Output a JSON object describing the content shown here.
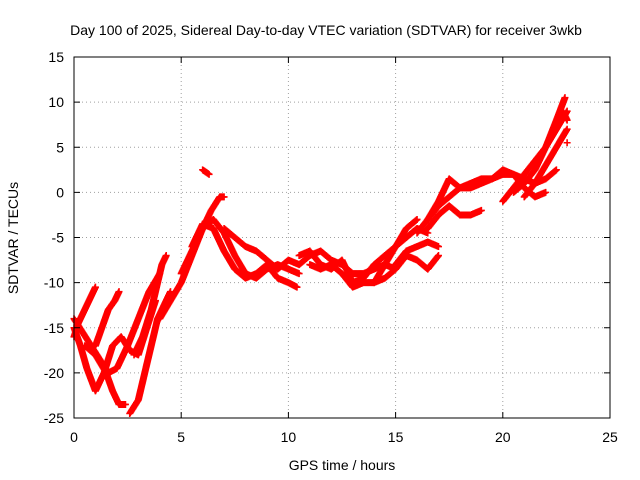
{
  "chart_data": {
    "type": "scatter",
    "title": "Day 100 of 2025, Sidereal Day-to-day VTEC variation (SDTVAR) for receiver 3wkb",
    "xlabel": "GPS time / hours",
    "ylabel": "SDTVAR / TECUs",
    "xlim": [
      0,
      25
    ],
    "ylim": [
      -25,
      15
    ],
    "xticks": [
      "0",
      "5",
      "10",
      "15",
      "20",
      "25"
    ],
    "yticks": [
      "15",
      "10",
      "5",
      "0",
      "-5",
      "-10",
      "-15",
      "-20",
      "-25"
    ],
    "grid": true,
    "marker": "plus",
    "color": "#ff0000",
    "tracks": [
      [
        [
          0.0,
          -14
        ],
        [
          0.4,
          -15.5
        ],
        [
          0.8,
          -17
        ],
        [
          1.2,
          -18.5
        ],
        [
          1.6,
          -20
        ],
        [
          2.0,
          -19.5
        ],
        [
          2.5,
          -17
        ],
        [
          3.0,
          -14
        ],
        [
          3.5,
          -11
        ],
        [
          4.0,
          -9
        ]
      ],
      [
        [
          0.0,
          -15
        ],
        [
          0.3,
          -17
        ],
        [
          0.6,
          -19.5
        ],
        [
          1.0,
          -22
        ],
        [
          1.4,
          -20
        ],
        [
          1.8,
          -17
        ],
        [
          2.2,
          -16
        ],
        [
          2.6,
          -17.5
        ],
        [
          3.0,
          -18
        ],
        [
          3.4,
          -15
        ],
        [
          3.8,
          -12
        ]
      ],
      [
        [
          0.0,
          -16
        ],
        [
          0.2,
          -14.5
        ],
        [
          0.4,
          -13.5
        ],
        [
          0.6,
          -12.5
        ],
        [
          0.8,
          -11.5
        ],
        [
          1.0,
          -10.5
        ]
      ],
      [
        [
          1.0,
          -17
        ],
        [
          1.3,
          -15
        ],
        [
          1.6,
          -13
        ],
        [
          1.9,
          -12
        ],
        [
          2.1,
          -11
        ]
      ],
      [
        [
          0.5,
          -17
        ],
        [
          1.0,
          -18
        ],
        [
          1.5,
          -20
        ],
        [
          1.8,
          -22
        ],
        [
          2.1,
          -23.5
        ],
        [
          2.4,
          -23.5
        ]
      ],
      [
        [
          2.6,
          -24.5
        ],
        [
          3.0,
          -23
        ],
        [
          3.3,
          -20
        ],
        [
          3.6,
          -17
        ],
        [
          3.9,
          -14
        ],
        [
          4.2,
          -12.5
        ],
        [
          4.5,
          -11
        ]
      ],
      [
        [
          2.8,
          -18
        ],
        [
          3.2,
          -16
        ],
        [
          3.6,
          -13
        ],
        [
          3.9,
          -10
        ],
        [
          4.1,
          -8
        ],
        [
          4.3,
          -7
        ]
      ],
      [
        [
          4.0,
          -14
        ],
        [
          4.5,
          -12
        ],
        [
          5.0,
          -10
        ],
        [
          5.5,
          -7
        ],
        [
          6.0,
          -4
        ],
        [
          6.4,
          -2
        ],
        [
          6.8,
          -0.5
        ],
        [
          7.0,
          -0.5
        ]
      ],
      [
        [
          5.0,
          -9
        ],
        [
          5.5,
          -6.5
        ],
        [
          6.0,
          -4
        ],
        [
          6.5,
          -3
        ],
        [
          7.0,
          -4.5
        ],
        [
          7.5,
          -7
        ],
        [
          8.0,
          -9
        ],
        [
          8.5,
          -9.5
        ],
        [
          9.0,
          -8.5
        ],
        [
          9.5,
          -8
        ],
        [
          10.0,
          -8.5
        ],
        [
          10.5,
          -9
        ]
      ],
      [
        [
          5.5,
          -6
        ],
        [
          6.0,
          -3.5
        ],
        [
          6.5,
          -4
        ],
        [
          7.0,
          -6.5
        ],
        [
          7.5,
          -8.5
        ],
        [
          8.0,
          -9.5
        ],
        [
          8.5,
          -9
        ],
        [
          9.0,
          -8
        ],
        [
          9.5,
          -9.5
        ],
        [
          10.0,
          -10
        ],
        [
          10.4,
          -10.5
        ]
      ],
      [
        [
          6.0,
          2.5
        ],
        [
          6.3,
          2
        ]
      ],
      [
        [
          7.0,
          -4
        ],
        [
          7.5,
          -5
        ],
        [
          8.0,
          -6
        ],
        [
          8.5,
          -6.5
        ],
        [
          9.0,
          -7.5
        ],
        [
          9.5,
          -8.5
        ],
        [
          10.0,
          -7.5
        ],
        [
          10.5,
          -8
        ],
        [
          11.0,
          -7
        ],
        [
          11.5,
          -6.5
        ],
        [
          12.0,
          -7.5
        ],
        [
          12.5,
          -8
        ],
        [
          13.0,
          -9
        ],
        [
          13.5,
          -9
        ],
        [
          14.0,
          -8.5
        ],
        [
          14.5,
          -8
        ],
        [
          15.0,
          -8.5
        ]
      ],
      [
        [
          10.5,
          -7
        ],
        [
          11.0,
          -6.5
        ],
        [
          11.5,
          -8
        ],
        [
          12.0,
          -8.5
        ],
        [
          12.5,
          -7.5
        ],
        [
          13.0,
          -10
        ],
        [
          13.5,
          -9.5
        ],
        [
          14.0,
          -8
        ],
        [
          14.5,
          -7
        ],
        [
          15.0,
          -6
        ],
        [
          15.5,
          -5
        ],
        [
          16.0,
          -4
        ],
        [
          16.5,
          -4.5
        ]
      ],
      [
        [
          11.0,
          -8
        ],
        [
          11.5,
          -8.5
        ],
        [
          12.0,
          -8
        ],
        [
          12.5,
          -9
        ],
        [
          13.0,
          -10.5
        ],
        [
          13.5,
          -10
        ],
        [
          14.0,
          -10
        ],
        [
          14.5,
          -9.5
        ],
        [
          15.0,
          -8.5
        ],
        [
          15.5,
          -7
        ],
        [
          16.0,
          -7.5
        ],
        [
          16.5,
          -8.5
        ],
        [
          17.0,
          -7
        ]
      ],
      [
        [
          14.0,
          -10
        ],
        [
          14.5,
          -8
        ],
        [
          15.0,
          -6
        ],
        [
          15.5,
          -4
        ],
        [
          16.0,
          -3
        ]
      ],
      [
        [
          15.0,
          -8
        ],
        [
          15.5,
          -6.5
        ],
        [
          16.0,
          -6
        ],
        [
          16.5,
          -5.5
        ],
        [
          17.0,
          -6
        ]
      ],
      [
        [
          16.0,
          -4.5
        ],
        [
          16.5,
          -3
        ],
        [
          17.0,
          -1.5
        ],
        [
          17.5,
          -0.5
        ],
        [
          18.0,
          0.5
        ],
        [
          18.5,
          1
        ],
        [
          19.0,
          1.5
        ],
        [
          19.5,
          1.5
        ],
        [
          20.0,
          2
        ],
        [
          20.5,
          2
        ],
        [
          21.0,
          1.5
        ],
        [
          21.5,
          1
        ],
        [
          22.0,
          1.5
        ],
        [
          22.5,
          2.5
        ]
      ],
      [
        [
          16.5,
          -4
        ],
        [
          17.0,
          -2.5
        ],
        [
          17.5,
          -1.5
        ],
        [
          18.0,
          -2.5
        ],
        [
          18.5,
          -2.5
        ],
        [
          19.0,
          -2
        ]
      ],
      [
        [
          16.5,
          -3
        ],
        [
          17.0,
          -1
        ],
        [
          17.5,
          1.5
        ],
        [
          18.0,
          0.5
        ],
        [
          18.5,
          0.5
        ],
        [
          19.0,
          1
        ],
        [
          19.5,
          1.5
        ],
        [
          20.0,
          2.5
        ],
        [
          20.5,
          2
        ],
        [
          21.0,
          0.5
        ],
        [
          21.5,
          -0.5
        ],
        [
          22.0,
          0
        ]
      ],
      [
        [
          20.0,
          -1
        ],
        [
          20.5,
          0.5
        ],
        [
          21.0,
          2
        ],
        [
          21.5,
          3.5
        ],
        [
          22.0,
          5
        ],
        [
          22.5,
          7
        ],
        [
          23.0,
          9
        ]
      ],
      [
        [
          20.5,
          0
        ],
        [
          21.0,
          1
        ],
        [
          21.5,
          2.5
        ],
        [
          22.0,
          5
        ],
        [
          22.5,
          8
        ],
        [
          22.9,
          10.5
        ]
      ],
      [
        [
          21.0,
          -0.5
        ],
        [
          21.5,
          1
        ],
        [
          22.0,
          3
        ],
        [
          22.5,
          5
        ],
        [
          23.0,
          7
        ]
      ],
      [
        [
          22.8,
          9
        ],
        [
          23.0,
          8
        ]
      ],
      [
        [
          23.0,
          5.5
        ]
      ]
    ]
  }
}
